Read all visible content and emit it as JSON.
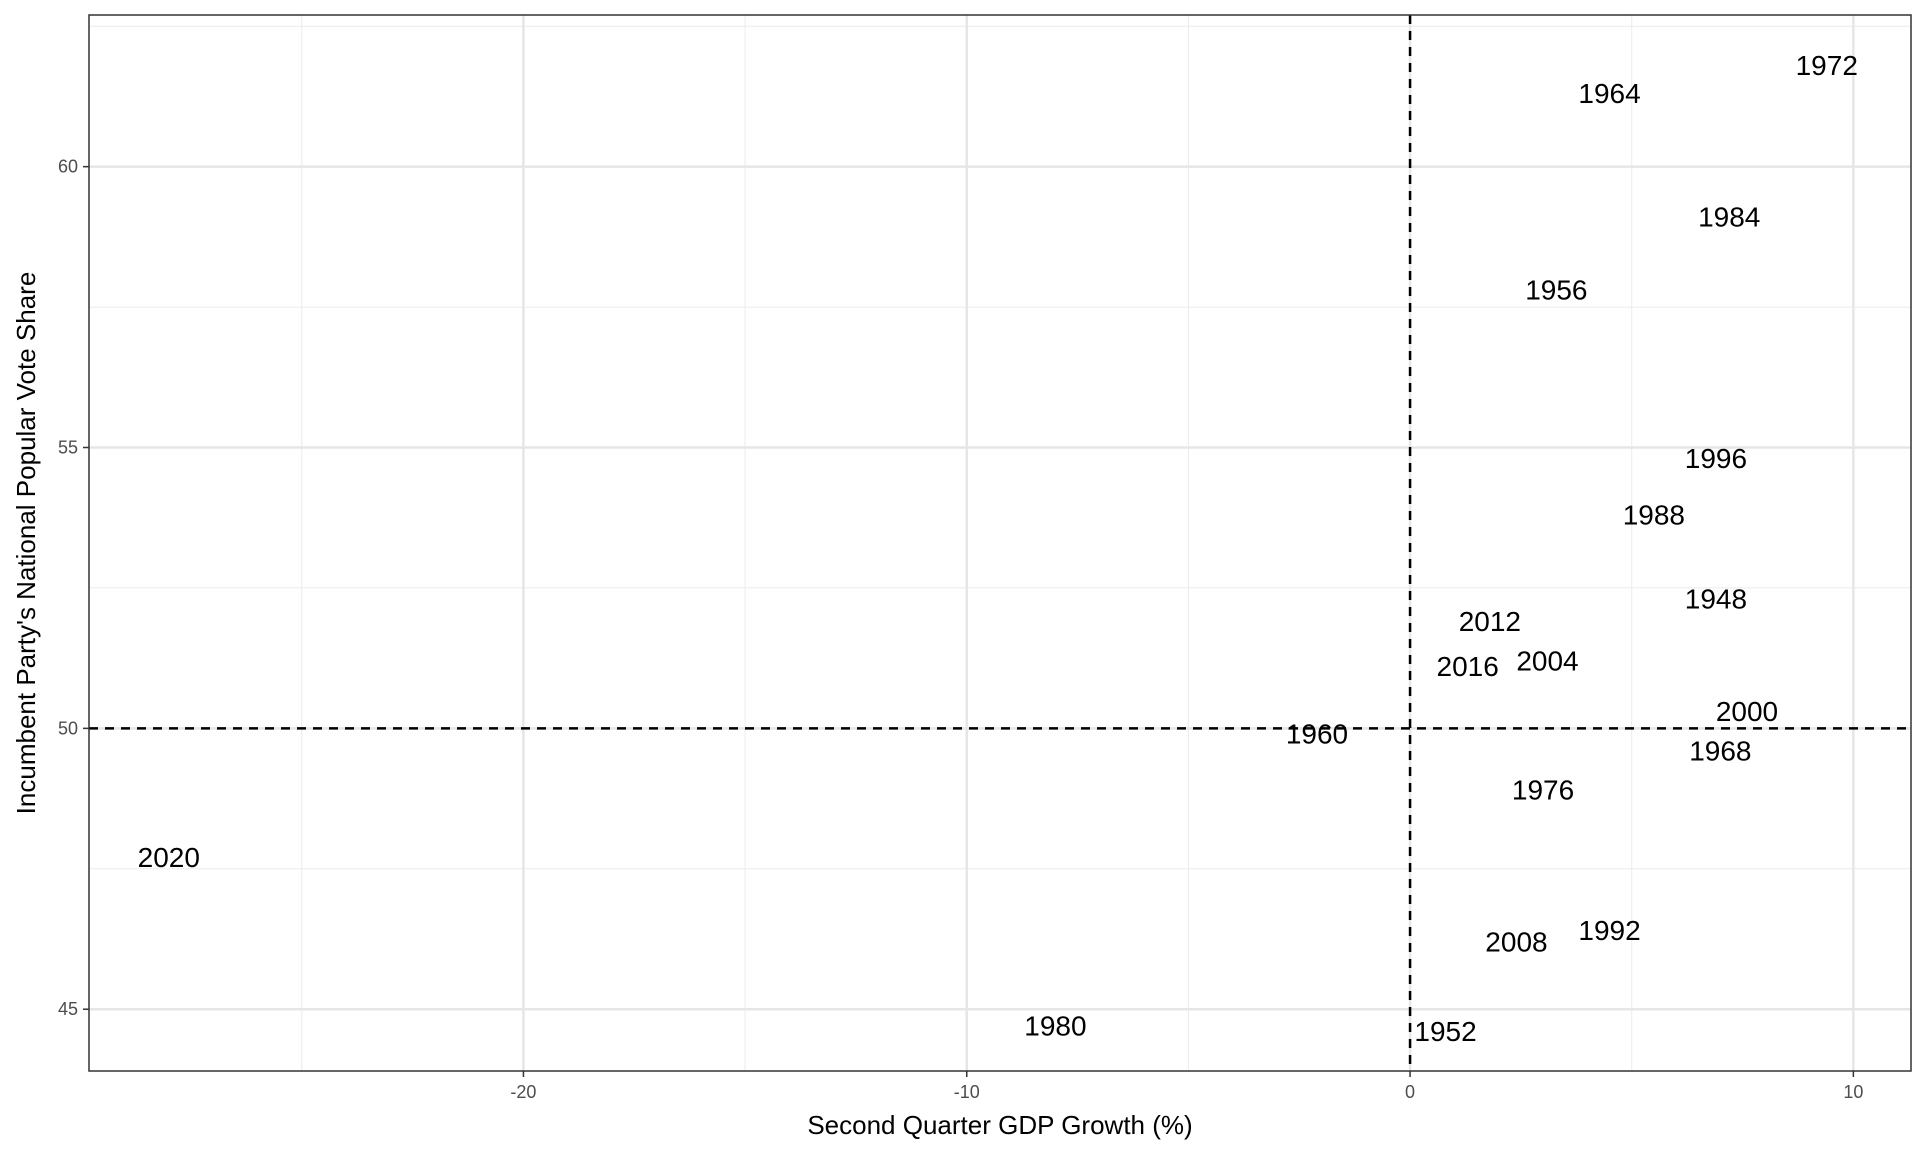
{
  "chart_data": {
    "type": "scatter",
    "title": "",
    "xlabel": "Second Quarter GDP Growth (%)",
    "ylabel": "Incumbent Party's National Popular Vote Share",
    "xlim": [
      -29.8,
      11.3
    ],
    "ylim": [
      43.9,
      62.7
    ],
    "x_ticks": [
      -20,
      -10,
      0,
      10
    ],
    "x_tick_labels": [
      "-20",
      "-10",
      "0",
      "10"
    ],
    "y_ticks": [
      45,
      50,
      55,
      60
    ],
    "y_tick_labels": [
      "45",
      "50",
      "55",
      "60"
    ],
    "grid": true,
    "theme": "bw",
    "reference_lines": {
      "x": 0,
      "y": 50,
      "style": "dashed"
    },
    "points": [
      {
        "label": "1948",
        "x": 6.9,
        "y": 52.3
      },
      {
        "label": "1952",
        "x": 0.8,
        "y": 44.6
      },
      {
        "label": "1956",
        "x": 3.3,
        "y": 57.8
      },
      {
        "label": "1960",
        "x": -2.1,
        "y": 49.9
      },
      {
        "label": "1964",
        "x": 4.5,
        "y": 61.3
      },
      {
        "label": "1968",
        "x": 7.0,
        "y": 49.6
      },
      {
        "label": "1972",
        "x": 9.4,
        "y": 61.8
      },
      {
        "label": "1976",
        "x": 3.0,
        "y": 48.9
      },
      {
        "label": "1980",
        "x": -8.0,
        "y": 44.7
      },
      {
        "label": "1984",
        "x": 7.2,
        "y": 59.1
      },
      {
        "label": "1988",
        "x": 5.5,
        "y": 53.8
      },
      {
        "label": "1992",
        "x": 4.5,
        "y": 46.4
      },
      {
        "label": "1996",
        "x": 6.9,
        "y": 54.8
      },
      {
        "label": "2000",
        "x": 7.6,
        "y": 50.3
      },
      {
        "label": "2004",
        "x": 3.1,
        "y": 51.2
      },
      {
        "label": "2008",
        "x": 2.4,
        "y": 46.2
      },
      {
        "label": "2012",
        "x": 1.8,
        "y": 51.9
      },
      {
        "label": "2016",
        "x": 1.3,
        "y": 51.1
      },
      {
        "label": "2020",
        "x": -28.0,
        "y": 47.7
      }
    ]
  }
}
